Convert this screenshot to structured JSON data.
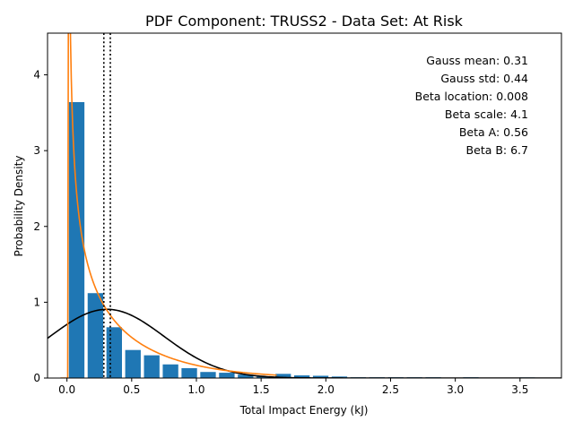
{
  "chart_data": {
    "type": "bar",
    "title": "PDF Component: TRUSS2 - Data Set: At Risk",
    "xlabel": "Total Impact Energy (kJ)",
    "ylabel": "Probability Density",
    "xlim": [
      -0.15,
      3.82
    ],
    "ylim": [
      0,
      4.55
    ],
    "x_ticks": [
      0.0,
      0.5,
      1.0,
      1.5,
      2.0,
      2.5,
      3.0,
      3.5
    ],
    "x_tick_labels": [
      "0.0",
      "0.5",
      "1.0",
      "1.5",
      "2.0",
      "2.5",
      "3.0",
      "3.5"
    ],
    "y_ticks": [
      0,
      1,
      2,
      3,
      4
    ],
    "y_tick_labels": [
      "0",
      "1",
      "2",
      "3",
      "4"
    ],
    "bar_width": 0.12,
    "bars": {
      "x": [
        0.075,
        0.22,
        0.365,
        0.51,
        0.655,
        0.8,
        0.945,
        1.09,
        1.235,
        1.38,
        1.525,
        1.67,
        1.815,
        1.96,
        2.105,
        2.25,
        2.395,
        2.54,
        2.685,
        2.83,
        2.975,
        3.12,
        3.265,
        3.41,
        3.555
      ],
      "values": [
        3.64,
        1.12,
        0.67,
        0.37,
        0.3,
        0.18,
        0.13,
        0.08,
        0.07,
        0.045,
        0.02,
        0.055,
        0.035,
        0.03,
        0.02,
        0.01,
        0.01,
        0.01,
        0.01,
        0.01,
        0.005,
        0.01,
        0.0,
        0.0,
        0.008
      ],
      "color": "#1f77b4"
    },
    "series": [
      {
        "kind": "line",
        "color": "#000000",
        "curve": "gauss",
        "mean": 0.31,
        "std": 0.44,
        "x_range": [
          -0.15,
          3.82
        ]
      },
      {
        "kind": "line",
        "color": "#ff7f0e",
        "curve": "beta",
        "loc": 0.008,
        "scale": 4.1,
        "a": 0.56,
        "b": 6.7,
        "x_range": [
          -0.05,
          1.62
        ]
      }
    ],
    "vlines": [
      {
        "x": 0.285,
        "style": "dotted",
        "color": "#000000"
      },
      {
        "x": 0.335,
        "style": "dotted",
        "color": "#000000"
      }
    ],
    "annotations": [
      "Gauss mean: 0.31",
      "Gauss std: 0.44",
      "Beta location: 0.008",
      "Beta scale: 4.1",
      "Beta A: 0.56",
      "Beta B: 6.7"
    ],
    "legend": "none",
    "grid": false
  }
}
